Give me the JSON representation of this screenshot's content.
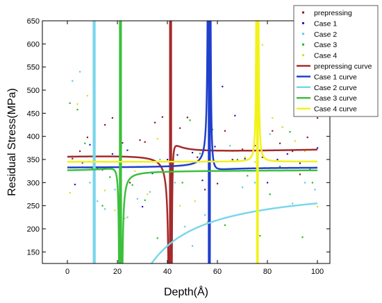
{
  "chart_data": {
    "type": "scatter",
    "xlabel": "Depth(Å)",
    "ylabel": "Residual Stress(MPa)",
    "xlim": [
      -10,
      105
    ],
    "ylim": [
      125,
      650
    ],
    "x_ticks": [
      0,
      20,
      40,
      60,
      80,
      100
    ],
    "y_ticks": [
      150,
      200,
      250,
      300,
      350,
      400,
      450,
      500,
      550,
      600,
      650
    ],
    "grid": false,
    "legend_position": "top-right",
    "series": [
      {
        "name": "prepressing",
        "kind": "points",
        "color": "#8b1a1a",
        "points": [
          [
            2,
            352
          ],
          [
            5,
            368
          ],
          [
            8,
            398
          ],
          [
            12,
            330
          ],
          [
            15,
            425
          ],
          [
            18,
            440
          ],
          [
            22,
            386
          ],
          [
            25,
            300
          ],
          [
            29,
            392
          ],
          [
            31,
            388
          ],
          [
            35,
            430
          ],
          [
            38,
            442
          ],
          [
            45,
            418
          ],
          [
            48,
            441
          ],
          [
            52,
            355
          ],
          [
            55,
            285
          ],
          [
            60,
            298
          ],
          [
            63,
            412
          ],
          [
            66,
            350
          ],
          [
            70,
            372
          ],
          [
            75,
            380
          ],
          [
            78,
            355
          ],
          [
            82,
            412
          ],
          [
            85,
            385
          ],
          [
            90,
            368
          ],
          [
            93,
            318
          ],
          [
            96,
            398
          ],
          [
            100,
            440
          ]
        ]
      },
      {
        "name": "Case 1",
        "kind": "points",
        "color": "#1a1acd",
        "points": [
          [
            3,
            296
          ],
          [
            6,
            343
          ],
          [
            9,
            382
          ],
          [
            14,
            328
          ],
          [
            18,
            362
          ],
          [
            24,
            370
          ],
          [
            30,
            248
          ],
          [
            34,
            320
          ],
          [
            40,
            350
          ],
          [
            44,
            360
          ],
          [
            50,
            365
          ],
          [
            54,
            305
          ],
          [
            59,
            378
          ],
          [
            62,
            508
          ],
          [
            67,
            445
          ],
          [
            71,
            352
          ],
          [
            76,
            338
          ],
          [
            80,
            300
          ],
          [
            84,
            350
          ],
          [
            88,
            362
          ],
          [
            93,
            342
          ],
          [
            97,
            328
          ],
          [
            100,
            375
          ]
        ]
      },
      {
        "name": "Case 2",
        "kind": "points",
        "color": "#5cc8e6",
        "points": [
          [
            2,
            520
          ],
          [
            5,
            540
          ],
          [
            9,
            300
          ],
          [
            12,
            260
          ],
          [
            15,
            243
          ],
          [
            19,
            285
          ],
          [
            24,
            225
          ],
          [
            28,
            265
          ],
          [
            33,
            280
          ],
          [
            37,
            350
          ],
          [
            43,
            300
          ],
          [
            47,
            205
          ],
          [
            50,
            163
          ],
          [
            55,
            230
          ],
          [
            60,
            345
          ],
          [
            65,
            380
          ],
          [
            70,
            290
          ],
          [
            75,
            300
          ],
          [
            81,
            405
          ],
          [
            86,
            420
          ],
          [
            90,
            255
          ],
          [
            95,
            300
          ],
          [
            99,
            285
          ]
        ]
      },
      {
        "name": "Case 3",
        "kind": "points",
        "color": "#22bb22",
        "points": [
          [
            1,
            472
          ],
          [
            4,
            458
          ],
          [
            7,
            385
          ],
          [
            10,
            330
          ],
          [
            14,
            250
          ],
          [
            17,
            312
          ],
          [
            21,
            375
          ],
          [
            26,
            295
          ],
          [
            31,
            262
          ],
          [
            36,
            180
          ],
          [
            41,
            330
          ],
          [
            46,
            300
          ],
          [
            49,
            435
          ],
          [
            53,
            363
          ],
          [
            58,
            415
          ],
          [
            63,
            208
          ],
          [
            68,
            350
          ],
          [
            72,
            315
          ],
          [
            77,
            185
          ],
          [
            81,
            275
          ],
          [
            85,
            335
          ],
          [
            89,
            410
          ],
          [
            94,
            182
          ],
          [
            98,
            300
          ]
        ]
      },
      {
        "name": "Case 4",
        "kind": "points",
        "color": "#dddd22",
        "points": [
          [
            1,
            278
          ],
          [
            4,
            470
          ],
          [
            8,
            488
          ],
          [
            11,
            315
          ],
          [
            15,
            283
          ],
          [
            19,
            240
          ],
          [
            23,
            223
          ],
          [
            27,
            325
          ],
          [
            32,
            275
          ],
          [
            36,
            395
          ],
          [
            42,
            280
          ],
          [
            45,
            250
          ],
          [
            51,
            260
          ],
          [
            56,
            215
          ],
          [
            61,
            330
          ],
          [
            66,
            368
          ],
          [
            71,
            355
          ],
          [
            75,
            345
          ],
          [
            78,
            598
          ],
          [
            82,
            440
          ],
          [
            86,
            420
          ],
          [
            91,
            390
          ],
          [
            95,
            368
          ],
          [
            100,
            248
          ]
        ]
      },
      {
        "name": "prepressing curve",
        "kind": "curve",
        "color": "#a52a2a",
        "width": 2.5,
        "base": [
          358,
          0.12
        ],
        "resonances": [
          [
            41,
            6,
            1,
            3
          ],
          [
            41.5,
            -4,
            2,
            3
          ]
        ],
        "x_range": [
          0,
          100
        ]
      },
      {
        "name": "Case 1 curve",
        "kind": "curve",
        "color": "#1f3fcc",
        "width": 2.5,
        "base": [
          332,
          0.01
        ],
        "resonances": [
          [
            56.5,
            -6,
            1,
            3
          ],
          [
            57,
            5,
            2,
            3
          ]
        ],
        "x_range": [
          0,
          100
        ]
      },
      {
        "name": "Case 2 curve",
        "kind": "curve",
        "color": "#7ad6ec",
        "width": 2.5,
        "base": [
          300,
          0
        ],
        "resonances": [
          [
            10.5,
            -40,
            1,
            3
          ],
          [
            11,
            -60,
            2,
            3
          ]
        ],
        "x_range": [
          2,
          100
        ]
      },
      {
        "name": "Case 3 curve",
        "kind": "curve",
        "color": "#3cc03c",
        "width": 2.5,
        "base": [
          325,
          0.02
        ],
        "resonances": [
          [
            21,
            4,
            1,
            3
          ],
          [
            21.5,
            -5,
            2,
            3
          ]
        ],
        "x_range": [
          0,
          100
        ]
      },
      {
        "name": "Case 4 curve",
        "kind": "curve",
        "color": "#f2f21a",
        "width": 2.5,
        "base": [
          345,
          0.005
        ],
        "resonances": [
          [
            75.8,
            -4,
            1,
            3
          ],
          [
            76.2,
            4,
            2,
            3
          ]
        ],
        "x_range": [
          0,
          100
        ]
      }
    ]
  }
}
